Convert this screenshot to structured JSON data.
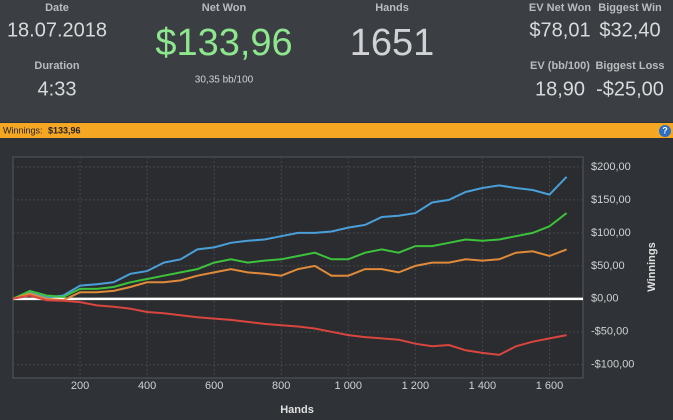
{
  "header": {
    "date_label": "Date",
    "date": "18.07.2018",
    "duration_label": "Duration",
    "duration": "4:33",
    "net_won_label": "Net Won",
    "net_won": "$133,96",
    "bb_per_100": "30,35 bb/100",
    "hands_label": "Hands",
    "hands": "1651",
    "ev_net_won_label": "EV Net Won",
    "ev_net_won": "$78,01",
    "ev_bb_label": "EV (bb/100)",
    "ev_bb": "18,90",
    "biggest_win_label": "Biggest Win",
    "biggest_win": "$32,40",
    "biggest_loss_label": "Biggest Loss",
    "biggest_loss": "-$25,00"
  },
  "banner": {
    "label": "Winnings:",
    "value": "$133,96",
    "help": "?"
  },
  "chart_data": {
    "type": "line",
    "x_label": "Hands",
    "y_label": "Winnings",
    "x": [
      0,
      50,
      100,
      150,
      200,
      250,
      300,
      350,
      400,
      450,
      500,
      550,
      600,
      650,
      700,
      750,
      800,
      850,
      900,
      950,
      1000,
      1050,
      1100,
      1150,
      1200,
      1250,
      1300,
      1350,
      1400,
      1450,
      1500,
      1550,
      1600,
      1651
    ],
    "series": [
      {
        "color": "#4a9fd8",
        "values": [
          0,
          10,
          2,
          5,
          20,
          22,
          25,
          38,
          42,
          55,
          60,
          75,
          78,
          85,
          88,
          90,
          95,
          100,
          100,
          102,
          108,
          112,
          124,
          126,
          130,
          146,
          150,
          162,
          168,
          172,
          168,
          165,
          158,
          185
        ]
      },
      {
        "color": "#3cc23c",
        "values": [
          0,
          12,
          5,
          3,
          15,
          15,
          18,
          25,
          30,
          35,
          40,
          45,
          55,
          60,
          55,
          58,
          60,
          65,
          70,
          60,
          60,
          70,
          75,
          70,
          80,
          80,
          85,
          90,
          88,
          90,
          95,
          100,
          110,
          130
        ]
      },
      {
        "color": "#e08a3a",
        "values": [
          0,
          8,
          0,
          -2,
          10,
          10,
          12,
          18,
          25,
          25,
          28,
          35,
          40,
          45,
          40,
          38,
          35,
          45,
          50,
          35,
          35,
          45,
          45,
          40,
          50,
          55,
          55,
          60,
          58,
          60,
          70,
          72,
          65,
          75
        ]
      },
      {
        "color": "#d9453f",
        "values": [
          0,
          5,
          -2,
          -3,
          -5,
          -10,
          -12,
          -15,
          -20,
          -22,
          -25,
          -28,
          -30,
          -32,
          -35,
          -38,
          -40,
          -42,
          -45,
          -50,
          -55,
          -58,
          -60,
          -62,
          -68,
          -72,
          -70,
          -78,
          -82,
          -85,
          -72,
          -65,
          -60,
          -55
        ]
      }
    ],
    "xlim": [
      0,
      1700
    ],
    "xticks": [
      200,
      400,
      600,
      800,
      {
        "value": 1000,
        "label": "1 000"
      },
      {
        "value": 1200,
        "label": "1 200"
      },
      {
        "value": 1400,
        "label": "1 400"
      },
      {
        "value": 1600,
        "label": "1 600"
      }
    ],
    "ylim": [
      -120,
      215
    ],
    "yticks": [
      {
        "value": 200,
        "label": "$200,00"
      },
      {
        "value": 150,
        "label": "$150,00"
      },
      {
        "value": 100,
        "label": "$100,00"
      },
      {
        "value": 50,
        "label": "$50,00"
      },
      {
        "value": 0,
        "label": "$0,00"
      },
      {
        "value": -50,
        "label": "-$50,00"
      },
      {
        "value": -100,
        "label": "-$100,00"
      }
    ],
    "grid": true
  }
}
